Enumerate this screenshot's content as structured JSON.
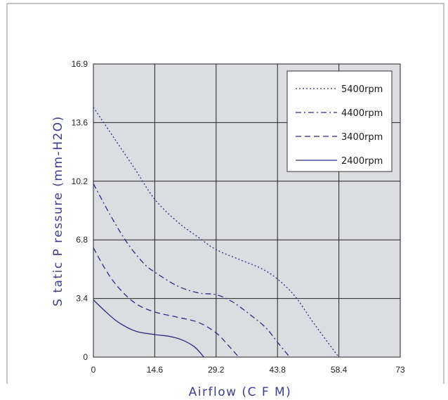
{
  "chart_data": {
    "type": "line",
    "xlabel": "Airflow (C F M)",
    "ylabel": "S tatic P ressure (mm-H2O)",
    "xlim": [
      0,
      73
    ],
    "ylim": [
      0,
      16.9
    ],
    "x_ticks": [
      "0",
      "14.6",
      "29.2",
      "43.8",
      "58.4",
      "73"
    ],
    "y_ticks": [
      "0",
      "3.4",
      "6.8",
      "10.2",
      "13.6",
      "16.9"
    ],
    "grid": true,
    "legend_position": "top-right",
    "plot_background": "#dcdde0",
    "line_color": "#2b2b80",
    "series": [
      {
        "name": "5400rpm",
        "dash": "dotted",
        "points": [
          [
            0,
            14.4
          ],
          [
            5,
            12.6
          ],
          [
            10,
            10.8
          ],
          [
            14.6,
            9.1
          ],
          [
            20,
            7.8
          ],
          [
            25,
            6.9
          ],
          [
            29.2,
            6.2
          ],
          [
            35,
            5.6
          ],
          [
            40,
            5.1
          ],
          [
            43.8,
            4.5
          ],
          [
            48,
            3.5
          ],
          [
            52,
            2.1
          ],
          [
            55,
            1.1
          ],
          [
            58.4,
            0
          ]
        ]
      },
      {
        "name": "4400rpm",
        "dash": "dashdot",
        "points": [
          [
            0,
            10.0
          ],
          [
            4,
            8.2
          ],
          [
            8,
            6.6
          ],
          [
            12,
            5.4
          ],
          [
            14.6,
            4.9
          ],
          [
            20,
            4.1
          ],
          [
            25,
            3.7
          ],
          [
            29.2,
            3.6
          ],
          [
            33,
            3.2
          ],
          [
            37,
            2.5
          ],
          [
            41,
            1.7
          ],
          [
            44,
            0.8
          ],
          [
            46.7,
            0
          ]
        ]
      },
      {
        "name": "3400rpm",
        "dash": "dashed",
        "points": [
          [
            0,
            6.3
          ],
          [
            3,
            5.0
          ],
          [
            6,
            4.0
          ],
          [
            10,
            3.1
          ],
          [
            14.6,
            2.6
          ],
          [
            20,
            2.3
          ],
          [
            25,
            2.0
          ],
          [
            29.2,
            1.4
          ],
          [
            32,
            0.7
          ],
          [
            34.6,
            0
          ]
        ]
      },
      {
        "name": "2400rpm",
        "dash": "solid",
        "points": [
          [
            0,
            3.3
          ],
          [
            3,
            2.6
          ],
          [
            6,
            2.0
          ],
          [
            10,
            1.5
          ],
          [
            14.6,
            1.3
          ],
          [
            18,
            1.2
          ],
          [
            21,
            1.0
          ],
          [
            24,
            0.6
          ],
          [
            26.3,
            0
          ]
        ]
      }
    ]
  }
}
